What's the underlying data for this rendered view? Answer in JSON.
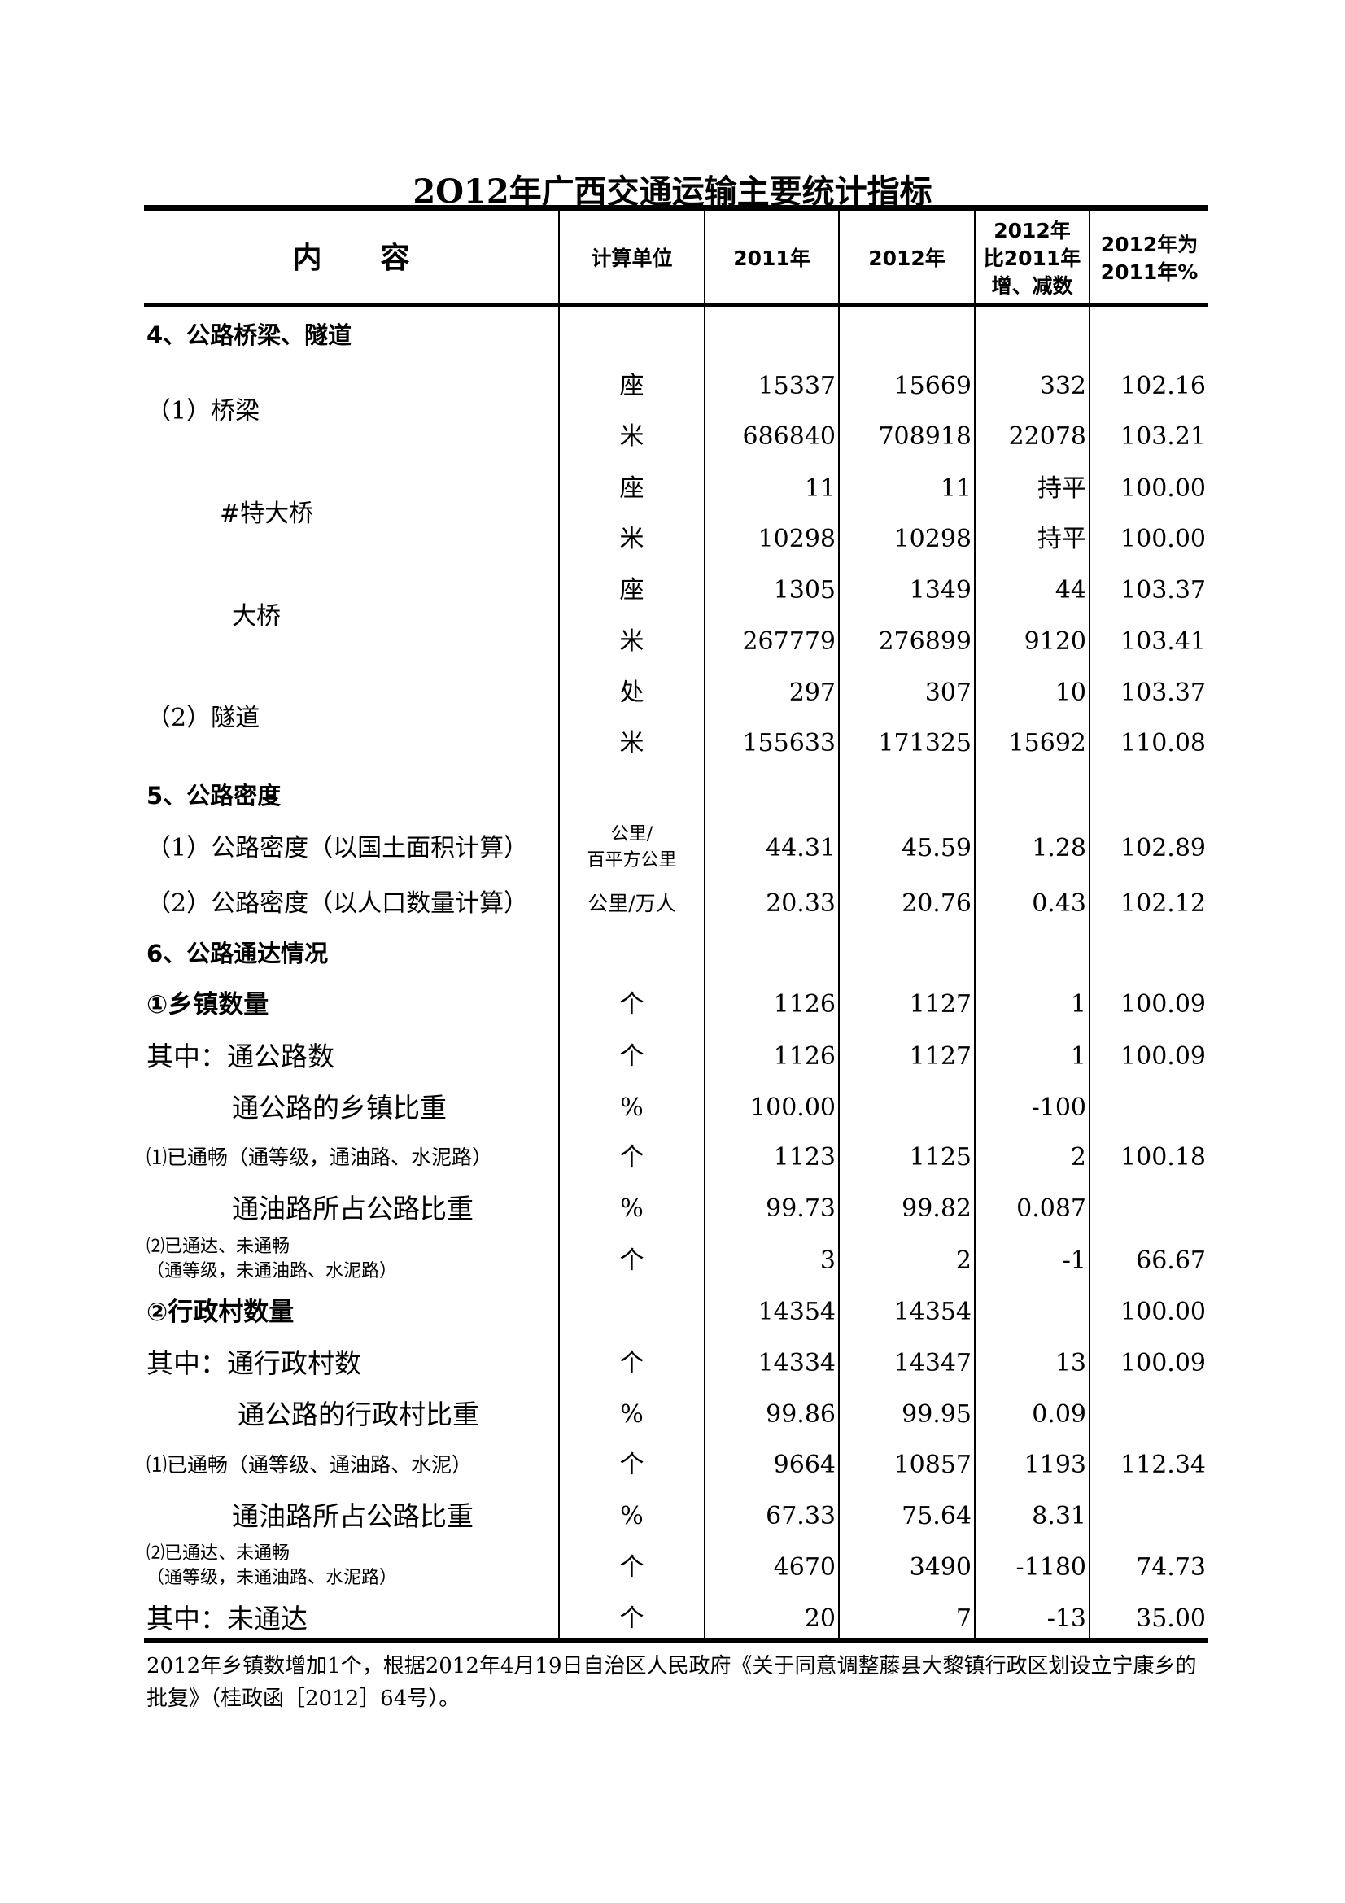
{
  "title": "2O12年广西交通运输主要统计指标",
  "header": {
    "content": "内　　容",
    "unit": "计算单位",
    "y2011": "2011年",
    "y2012": "2012年",
    "change": "2012年\n比2011年\n增、减数",
    "pct": "2012年为\n2011年%"
  },
  "table": {
    "rows": [
      {
        "label": "4、公路桥梁、隧道",
        "style": "section"
      },
      {
        "label": "（1）桥梁",
        "span": 2,
        "unit": "座",
        "y2011": "15337",
        "y2012": "15669",
        "change": "332",
        "pct": "102.16"
      },
      {
        "label": "",
        "unit": "米",
        "y2011": "686840",
        "y2012": "708918",
        "change": "22078",
        "pct": "103.21"
      },
      {
        "label": "#特大桥",
        "span": 2,
        "unit": "座",
        "y2011": "11",
        "y2012": "11",
        "change": "持平",
        "pct": "100.00"
      },
      {
        "label": "",
        "unit": "米",
        "y2011": "10298",
        "y2012": "10298",
        "change": "持平",
        "pct": "100.00"
      },
      {
        "label": "大桥",
        "span": 2,
        "unit": "座",
        "y2011": "1305",
        "y2012": "1349",
        "change": "44",
        "pct": "103.37"
      },
      {
        "label": "",
        "unit": "米",
        "y2011": "267779",
        "y2012": "276899",
        "change": "9120",
        "pct": "103.41"
      },
      {
        "label": "（2）隧道",
        "span": 2,
        "unit": "处",
        "y2011": "297",
        "y2012": "307",
        "change": "10",
        "pct": "103.37"
      },
      {
        "label": "",
        "unit": "米",
        "y2011": "155633",
        "y2012": "171325",
        "change": "15692",
        "pct": "110.08"
      },
      {
        "label": "5、公路密度",
        "style": "section"
      },
      {
        "label": "（1）公路密度（以国土面积计算）",
        "unit": "公里/\n百平方公里",
        "y2011": "44.31",
        "y2012": "45.59",
        "change": "1.28",
        "pct": "102.89"
      },
      {
        "label": "（2）公路密度（以人口数量计算）",
        "unit": "公里/万人",
        "y2011": "20.33",
        "y2012": "20.76",
        "change": "0.43",
        "pct": "102.12"
      },
      {
        "label": "6、公路通达情况",
        "style": "section"
      },
      {
        "label": "①乡镇数量",
        "style": "bold",
        "unit": "个",
        "y2011": "1126",
        "y2012": "1127",
        "change": "1",
        "pct": "100.09"
      },
      {
        "label": "其中：通公路数",
        "style": "big",
        "unit": "个",
        "y2011": "1126",
        "y2012": "1127",
        "change": "1",
        "pct": "100.09"
      },
      {
        "label": "通公路的乡镇比重",
        "style": "big",
        "unit": "%",
        "y2011": "100.00",
        "y2012": "",
        "change": "-100",
        "pct": ""
      },
      {
        "label": "⑴已通畅（通等级，通油路、水泥路）",
        "style": "small",
        "unit": "个",
        "y2011": "1123",
        "y2012": "1125",
        "change": "2",
        "pct": "100.18"
      },
      {
        "label": "通油路所占公路比重",
        "style": "big",
        "unit": "%",
        "y2011": "99.73",
        "y2012": "99.82",
        "change": "0.087",
        "pct": ""
      },
      {
        "label": "⑵已通达、未通畅\n（通等级，未通油路、水泥路）",
        "style": "two",
        "unit": "个",
        "y2011": "3",
        "y2012": "2",
        "change": "-1",
        "pct": "66.67"
      },
      {
        "label": "②行政村数量",
        "style": "bold",
        "unit": "",
        "y2011": "14354",
        "y2012": "14354",
        "change": "",
        "pct": "100.00"
      },
      {
        "label": "其中：通行政村数",
        "style": "big",
        "unit": "个",
        "y2011": "14334",
        "y2012": "14347",
        "change": "13",
        "pct": "100.09"
      },
      {
        "label": "通公路的行政村比重",
        "style": "big",
        "unit": "%",
        "y2011": "99.86",
        "y2012": "99.95",
        "change": "0.09",
        "pct": ""
      },
      {
        "label": "⑴已通畅（通等级、通油路、水泥）",
        "style": "small",
        "unit": "个",
        "y2011": "9664",
        "y2012": "10857",
        "change": "1193",
        "pct": "112.34"
      },
      {
        "label": "通油路所占公路比重",
        "style": "big",
        "unit": "%",
        "y2011": "67.33",
        "y2012": "75.64",
        "change": "8.31",
        "pct": ""
      },
      {
        "label": "⑵已通达、未通畅\n（通等级，未通油路、水泥路）",
        "style": "two",
        "unit": "个",
        "y2011": "4670",
        "y2012": "3490",
        "change": "-1180",
        "pct": "74.73"
      },
      {
        "label": "其中：未通达",
        "style": "big",
        "unit": "个",
        "y2011": "20",
        "y2012": "7",
        "change": "-13",
        "pct": "35.00"
      }
    ]
  },
  "footnote": "2012年乡镇数增加1个，根据2012年4月19日自治区人民政府《关于同意调整藤县大黎镇行政区划设立宁康乡的批复》（桂政函［2012］64号）。"
}
